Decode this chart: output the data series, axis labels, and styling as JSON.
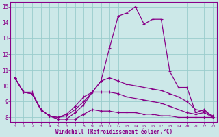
{
  "xlabel": "Windchill (Refroidissement éolien,°C)",
  "background_color": "#cce8e8",
  "line_color": "#880088",
  "grid_color": "#99cccc",
  "xlim": [
    -0.5,
    23.5
  ],
  "ylim": [
    7.7,
    15.3
  ],
  "yticks": [
    8,
    9,
    10,
    11,
    12,
    13,
    14,
    15
  ],
  "xticks": [
    0,
    1,
    2,
    3,
    4,
    5,
    6,
    7,
    8,
    9,
    10,
    11,
    12,
    13,
    14,
    15,
    16,
    17,
    18,
    19,
    20,
    21,
    22,
    23
  ],
  "lines": [
    {
      "x": [
        0,
        1,
        2,
        3,
        4,
        5,
        6,
        7,
        8,
        9,
        10,
        11,
        12,
        13,
        14,
        15,
        16,
        17,
        18,
        19,
        20,
        21,
        22,
        23
      ],
      "y": [
        10.5,
        9.6,
        9.6,
        8.5,
        8.1,
        7.9,
        7.9,
        8.3,
        8.8,
        9.6,
        10.3,
        12.4,
        14.4,
        14.6,
        15.0,
        13.9,
        14.2,
        14.2,
        10.9,
        9.9,
        9.9,
        8.3,
        8.5,
        8.0
      ]
    },
    {
      "x": [
        0,
        1,
        2,
        3,
        4,
        5,
        6,
        7,
        8,
        9,
        10,
        11,
        12,
        13,
        14,
        15,
        16,
        17,
        18,
        19,
        20,
        21,
        22,
        23
      ],
      "y": [
        10.5,
        9.6,
        9.5,
        8.5,
        8.1,
        8.0,
        8.1,
        8.5,
        9.0,
        9.6,
        10.3,
        10.5,
        10.3,
        10.1,
        10.0,
        9.9,
        9.8,
        9.7,
        9.5,
        9.3,
        9.0,
        8.5,
        8.4,
        8.1
      ]
    },
    {
      "x": [
        0,
        1,
        2,
        3,
        4,
        5,
        6,
        7,
        8,
        9,
        10,
        11,
        12,
        13,
        14,
        15,
        16,
        17,
        18,
        19,
        20,
        21,
        22,
        23
      ],
      "y": [
        10.5,
        9.6,
        9.5,
        8.5,
        8.1,
        8.0,
        8.2,
        8.7,
        9.3,
        9.6,
        9.6,
        9.6,
        9.5,
        9.3,
        9.2,
        9.1,
        9.0,
        8.9,
        8.7,
        8.5,
        8.3,
        8.2,
        8.3,
        8.0
      ]
    },
    {
      "x": [
        0,
        1,
        2,
        3,
        4,
        5,
        6,
        7,
        8,
        9,
        10,
        11,
        12,
        13,
        14,
        15,
        16,
        17,
        18,
        19,
        20,
        21,
        22,
        23
      ],
      "y": [
        10.5,
        9.6,
        9.5,
        8.5,
        8.1,
        7.9,
        7.9,
        7.9,
        8.2,
        8.5,
        8.4,
        8.4,
        8.3,
        8.3,
        8.3,
        8.2,
        8.2,
        8.1,
        8.1,
        8.0,
        8.0,
        8.0,
        8.0,
        8.0
      ]
    }
  ]
}
